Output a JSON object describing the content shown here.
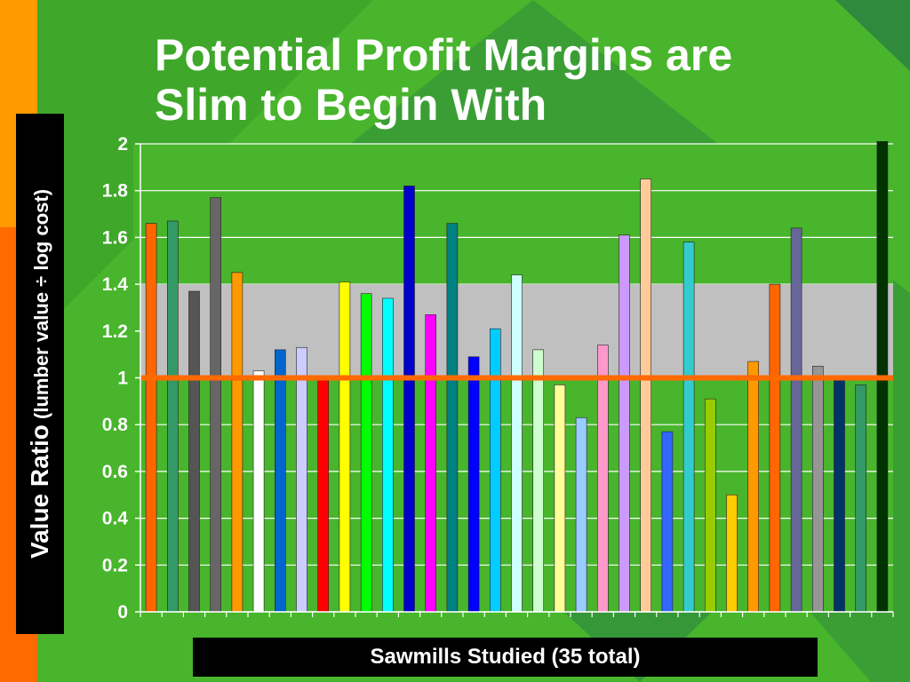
{
  "slide": {
    "title_line1": "Potential Profit Margins are",
    "title_line2": "Slim to Begin With"
  },
  "chart_data": {
    "type": "bar",
    "ylabel_main": "Value Ratio",
    "ylabel_sub": " (lumber value  ÷ log cost)",
    "xlabel": "Sawmills Studied (35 total)",
    "ylim": [
      0,
      2
    ],
    "yticks": [
      "0",
      "0.2",
      "0.4",
      "0.6",
      "0.8",
      "1",
      "1.2",
      "1.4",
      "1.6",
      "1.8",
      "2"
    ],
    "highlight_band": [
      1.0,
      1.4
    ],
    "reference_line": 1.0,
    "reference_color": "#ff6a00",
    "values": [
      1.66,
      1.67,
      1.37,
      1.77,
      1.45,
      1.03,
      1.12,
      1.13,
      1.0,
      1.41,
      1.36,
      1.34,
      1.82,
      1.27,
      1.66,
      1.09,
      1.21,
      1.44,
      1.12,
      0.97,
      0.83,
      1.14,
      1.61,
      1.85,
      0.77,
      1.58,
      0.91,
      0.5,
      1.07,
      1.4,
      1.64,
      1.05,
      1.0,
      0.97,
      2.01
    ],
    "colors": [
      "#ff6600",
      "#339966",
      "#555555",
      "#666666",
      "#ff9900",
      "#ffffff",
      "#0066cc",
      "#ccccff",
      "#ff0000",
      "#ffff00",
      "#00ff00",
      "#00ffff",
      "#0000cc",
      "#ff00ff",
      "#008080",
      "#0000ff",
      "#00ccff",
      "#ccffff",
      "#ccffcc",
      "#ffff99",
      "#99ccff",
      "#ff99cc",
      "#cc99ff",
      "#ffcc99",
      "#3366ff",
      "#33cccc",
      "#99cc00",
      "#ffcc00",
      "#ff9900",
      "#ff6600",
      "#666699",
      "#969696",
      "#003366",
      "#339966",
      "#003300"
    ]
  }
}
